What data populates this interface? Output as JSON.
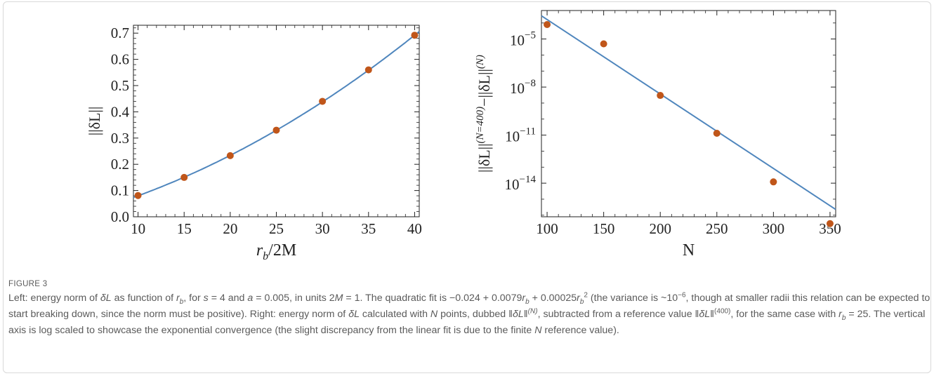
{
  "figure": {
    "label": "FIGURE 3",
    "caption": {
      "p1": "Left: energy norm of ",
      "dL1": "δL",
      "p2": " as function of ",
      "rb1": "r",
      "rb1_sub": "b",
      "p3": ", for ",
      "s_eq": "s",
      "p4": " = 4 and ",
      "a_eq": "a",
      "p5": " = 0.005, in units 2",
      "M1": "M",
      "p6": " = 1. The quadratic fit is −0.024 + 0.0079",
      "rb2": "r",
      "rb2_sub": "b",
      "p7": " + 0.00025",
      "rb3": "r",
      "rb3_sub": "b",
      "rb3_sup": "2",
      "p8": " (the variance is ~10",
      "var_sup": "−6",
      "p9": ", though at smaller radii this relation can be expected to start breaking down, since the norm must be positive). Right: energy norm of ",
      "dL2": "δL",
      "p10": " calculated with ",
      "N1": "N",
      "p11": " points, dubbed ‖",
      "dL3": "δL",
      "p12": "‖",
      "sup_N": "(N)",
      "p13": ", subtracted from a reference value ‖",
      "dL4": "δL",
      "p14": "‖",
      "sup_400": "(400)",
      "p15": ", for the same case with ",
      "rb4": "r",
      "rb4_sub": "b",
      "p16": " = 25. The vertical axis is log scaled to showcase the exponential convergence (the slight discrepancy from the linear fit is due to the finite ",
      "N2": "N",
      "p17": " reference value)."
    }
  },
  "colors": {
    "points": "#c0561a",
    "fit_line": "#4f86bd",
    "axis": "#222222",
    "caption_text": "#5a5a5a"
  },
  "chart_data": [
    {
      "type": "scatter",
      "xlabel_r": "r",
      "xlabel_b": "b",
      "xlabel_rest": "/2M",
      "ylabel": "||δL||",
      "xlim": [
        9.5,
        40.5
      ],
      "ylim": [
        0.0,
        0.73
      ],
      "xticks": [
        10,
        15,
        20,
        25,
        30,
        35,
        40
      ],
      "xtick_labels": [
        "10",
        "15",
        "20",
        "25",
        "30",
        "35",
        "40"
      ],
      "yticks": [
        0.0,
        0.1,
        0.2,
        0.3,
        0.4,
        0.5,
        0.6,
        0.7
      ],
      "ytick_labels": [
        "0.0",
        "0.1",
        "0.2",
        "0.3",
        "0.4",
        "0.5",
        "0.6",
        "0.7"
      ],
      "points": {
        "x": [
          10,
          15,
          20,
          25,
          30,
          35,
          40
        ],
        "y": [
          0.081,
          0.15,
          0.233,
          0.33,
          0.44,
          0.56,
          0.692
        ]
      },
      "fit": {
        "kind": "quadratic",
        "coefficients": [
          -0.024,
          0.0079,
          0.00025
        ]
      }
    },
    {
      "type": "scatter",
      "log_y": true,
      "xlabel": "N",
      "ylabel_main": "||δL||",
      "ylabel_sup1": "(N=400)",
      "ylabel_mid": "−||δL||",
      "ylabel_sup2": "(N)",
      "xlim": [
        95,
        355
      ],
      "ylim": [
        8e-17,
        0.0006
      ],
      "xticks": [
        100,
        150,
        200,
        250,
        300,
        350
      ],
      "xtick_labels": [
        "100",
        "150",
        "200",
        "250",
        "300",
        "350"
      ],
      "yticks": [
        1e-05,
        1e-08,
        1e-11,
        1e-14
      ],
      "ytick_labels": [
        "10",
        "10",
        "10",
        "10"
      ],
      "ytick_exps": [
        "−5",
        "−8",
        "−11",
        "−14"
      ],
      "points": {
        "x": [
          100,
          150,
          200,
          250,
          300,
          350
        ],
        "y": [
          8e-05,
          5e-06,
          3e-09,
          1.3e-11,
          1.2e-14,
          3e-17
        ]
      },
      "fit": {
        "kind": "log-linear",
        "x": [
          95,
          355
        ],
        "y": [
          0.00028,
          2.3e-16
        ]
      }
    }
  ]
}
